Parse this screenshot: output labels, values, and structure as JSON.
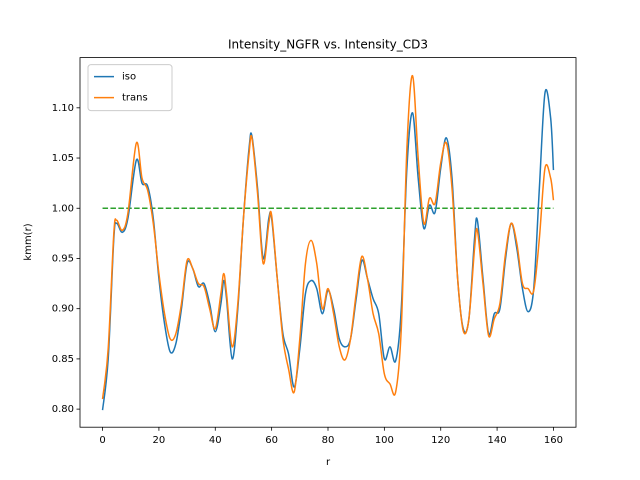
{
  "chart_data": {
    "type": "line",
    "title": "Intensity_NGFR vs. Intensity_CD3",
    "x_label": "r",
    "y_label": "kmm(r)",
    "x": [
      0,
      2,
      4,
      5,
      7,
      9,
      12,
      14,
      16,
      18,
      20,
      22,
      24,
      26,
      28,
      30,
      32,
      34,
      36,
      38,
      40,
      42,
      43,
      44,
      46,
      48,
      50,
      52,
      53,
      55,
      57,
      59,
      60,
      62,
      64,
      66,
      68,
      70,
      72,
      74,
      76,
      78,
      80,
      82,
      84,
      86,
      88,
      90,
      92,
      94,
      96,
      98,
      100,
      102,
      104,
      106,
      108,
      110,
      112,
      114,
      116,
      118,
      120,
      122,
      124,
      126,
      128,
      130,
      132,
      133,
      135,
      137,
      139,
      141,
      143,
      145,
      147,
      149,
      151,
      153,
      155,
      157,
      159,
      160
    ],
    "series": [
      {
        "name": "iso",
        "color": "#1f77b4",
        "values": [
          0.799,
          0.85,
          0.97,
          0.985,
          0.976,
          0.99,
          1.048,
          1.025,
          1.022,
          0.99,
          0.93,
          0.885,
          0.857,
          0.865,
          0.9,
          0.945,
          0.94,
          0.922,
          0.925,
          0.905,
          0.877,
          0.905,
          0.928,
          0.91,
          0.85,
          0.9,
          0.99,
          1.06,
          1.072,
          1.02,
          0.95,
          0.99,
          0.99,
          0.93,
          0.875,
          0.855,
          0.822,
          0.86,
          0.915,
          0.928,
          0.92,
          0.895,
          0.918,
          0.9,
          0.87,
          0.862,
          0.87,
          0.91,
          0.948,
          0.93,
          0.91,
          0.895,
          0.85,
          0.862,
          0.848,
          0.9,
          1.04,
          1.095,
          1.03,
          0.98,
          1.003,
          0.996,
          1.04,
          1.07,
          1.03,
          0.93,
          0.88,
          0.89,
          0.97,
          0.988,
          0.93,
          0.875,
          0.895,
          0.9,
          0.95,
          0.985,
          0.96,
          0.92,
          0.897,
          0.92,
          1.02,
          1.115,
          1.09,
          1.038
        ]
      },
      {
        "name": "trans",
        "color": "#ff7f0e",
        "values": [
          0.81,
          0.86,
          0.975,
          0.988,
          0.978,
          0.995,
          1.065,
          1.03,
          1.018,
          0.985,
          0.935,
          0.895,
          0.87,
          0.875,
          0.905,
          0.948,
          0.94,
          0.925,
          0.922,
          0.9,
          0.88,
          0.915,
          0.935,
          0.915,
          0.862,
          0.905,
          0.99,
          1.055,
          1.07,
          1.015,
          0.945,
          0.985,
          0.993,
          0.93,
          0.87,
          0.84,
          0.817,
          0.87,
          0.945,
          0.968,
          0.945,
          0.9,
          0.92,
          0.895,
          0.862,
          0.849,
          0.87,
          0.915,
          0.952,
          0.93,
          0.895,
          0.875,
          0.835,
          0.825,
          0.817,
          0.88,
          1.06,
          1.132,
          1.05,
          0.985,
          1.01,
          1.005,
          1.045,
          1.065,
          1.02,
          0.93,
          0.878,
          0.89,
          0.96,
          0.978,
          0.925,
          0.873,
          0.89,
          0.905,
          0.955,
          0.985,
          0.965,
          0.925,
          0.92,
          0.918,
          0.97,
          1.04,
          1.03,
          1.008
        ]
      }
    ],
    "reference_line": {
      "y": 1.0,
      "x": [
        0,
        160
      ],
      "color": "#2ca02c",
      "style": "dashed"
    },
    "xlim": [
      -8,
      168
    ],
    "xticks": [
      0,
      20,
      40,
      60,
      80,
      100,
      120,
      140,
      160
    ],
    "ylim": [
      0.782,
      1.15
    ],
    "yticks": [
      {
        "value": 0.8,
        "label": "0.80"
      },
      {
        "value": 0.85,
        "label": "0.85"
      },
      {
        "value": 0.9,
        "label": "0.90"
      },
      {
        "value": 0.95,
        "label": "0.95"
      },
      {
        "value": 1.0,
        "label": "1.00"
      },
      {
        "value": 1.05,
        "label": "1.05"
      },
      {
        "value": 1.1,
        "label": "1.10"
      }
    ],
    "legend": "upper left"
  }
}
